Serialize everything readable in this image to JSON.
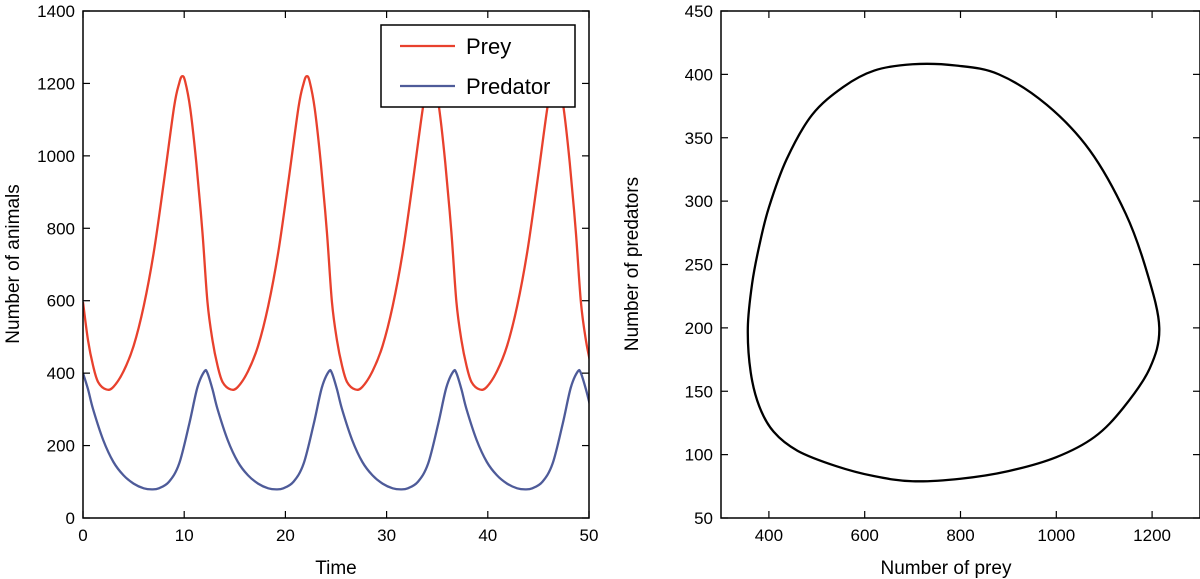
{
  "chart_data": [
    {
      "type": "line",
      "title": "",
      "xlabel": "Time",
      "ylabel": "Number of animals",
      "xlim": [
        0,
        50
      ],
      "ylim": [
        0,
        1400
      ],
      "xticks": [
        0,
        10,
        20,
        30,
        40,
        50
      ],
      "yticks": [
        0,
        200,
        400,
        600,
        800,
        1000,
        1200,
        1400
      ],
      "grid": false,
      "legend": "top-right",
      "period": 12.3,
      "series": [
        {
          "name": "Prey",
          "color": "#e8412d",
          "values_one_period": [
            [
              0.0,
              596
            ],
            [
              0.5,
              490
            ],
            [
              1.0,
              420
            ],
            [
              1.5,
              375
            ],
            [
              2.3,
              355
            ],
            [
              3.0,
              362
            ],
            [
              4.0,
              405
            ],
            [
              5.0,
              475
            ],
            [
              6.0,
              585
            ],
            [
              7.0,
              735
            ],
            [
              8.0,
              930
            ],
            [
              9.0,
              1135
            ],
            [
              9.5,
              1200
            ],
            [
              9.8,
              1220
            ],
            [
              10.1,
              1205
            ],
            [
              10.6,
              1130
            ],
            [
              11.2,
              980
            ],
            [
              11.8,
              790
            ],
            [
              12.3,
              596
            ]
          ]
        },
        {
          "name": "Predator",
          "color": "#4e5b99",
          "values_one_period": [
            [
              0.0,
              400
            ],
            [
              0.5,
              355
            ],
            [
              1.0,
              300
            ],
            [
              2.0,
              215
            ],
            [
              3.0,
              155
            ],
            [
              4.0,
              118
            ],
            [
              5.0,
              95
            ],
            [
              6.0,
              82
            ],
            [
              6.8,
              79
            ],
            [
              7.5,
              82
            ],
            [
              8.5,
              100
            ],
            [
              9.5,
              150
            ],
            [
              10.5,
              260
            ],
            [
              11.3,
              360
            ],
            [
              12.0,
              405
            ],
            [
              12.3,
              400
            ]
          ]
        }
      ]
    },
    {
      "type": "line",
      "title": "",
      "xlabel": "Number of prey",
      "ylabel": "Number of predators",
      "xlim": [
        300,
        1300
      ],
      "ylim": [
        50,
        450
      ],
      "xticks": [
        400,
        600,
        800,
        1000,
        1200
      ],
      "yticks": [
        50,
        100,
        150,
        200,
        250,
        300,
        350,
        400,
        450
      ],
      "grid": false,
      "series": [
        {
          "color": "#000000",
          "points": [
            [
              700,
              408
            ],
            [
              620,
              403
            ],
            [
              555,
              390
            ],
            [
              490,
              368
            ],
            [
              437,
              333
            ],
            [
              400,
              295
            ],
            [
              380,
              265
            ],
            [
              365,
              235
            ],
            [
              356,
              200
            ],
            [
              362,
              165
            ],
            [
              380,
              138
            ],
            [
              410,
              118
            ],
            [
              460,
              103
            ],
            [
              540,
              91
            ],
            [
              620,
              83
            ],
            [
              700,
              79
            ],
            [
              800,
              81
            ],
            [
              900,
              87
            ],
            [
              1000,
              98
            ],
            [
              1080,
              114
            ],
            [
              1140,
              137
            ],
            [
              1195,
              168
            ],
            [
              1215,
              200
            ],
            [
              1190,
              243
            ],
            [
              1145,
              290
            ],
            [
              1070,
              340
            ],
            [
              980,
              376
            ],
            [
              880,
              400
            ],
            [
              790,
              407
            ],
            [
              700,
              408
            ]
          ]
        }
      ]
    }
  ]
}
